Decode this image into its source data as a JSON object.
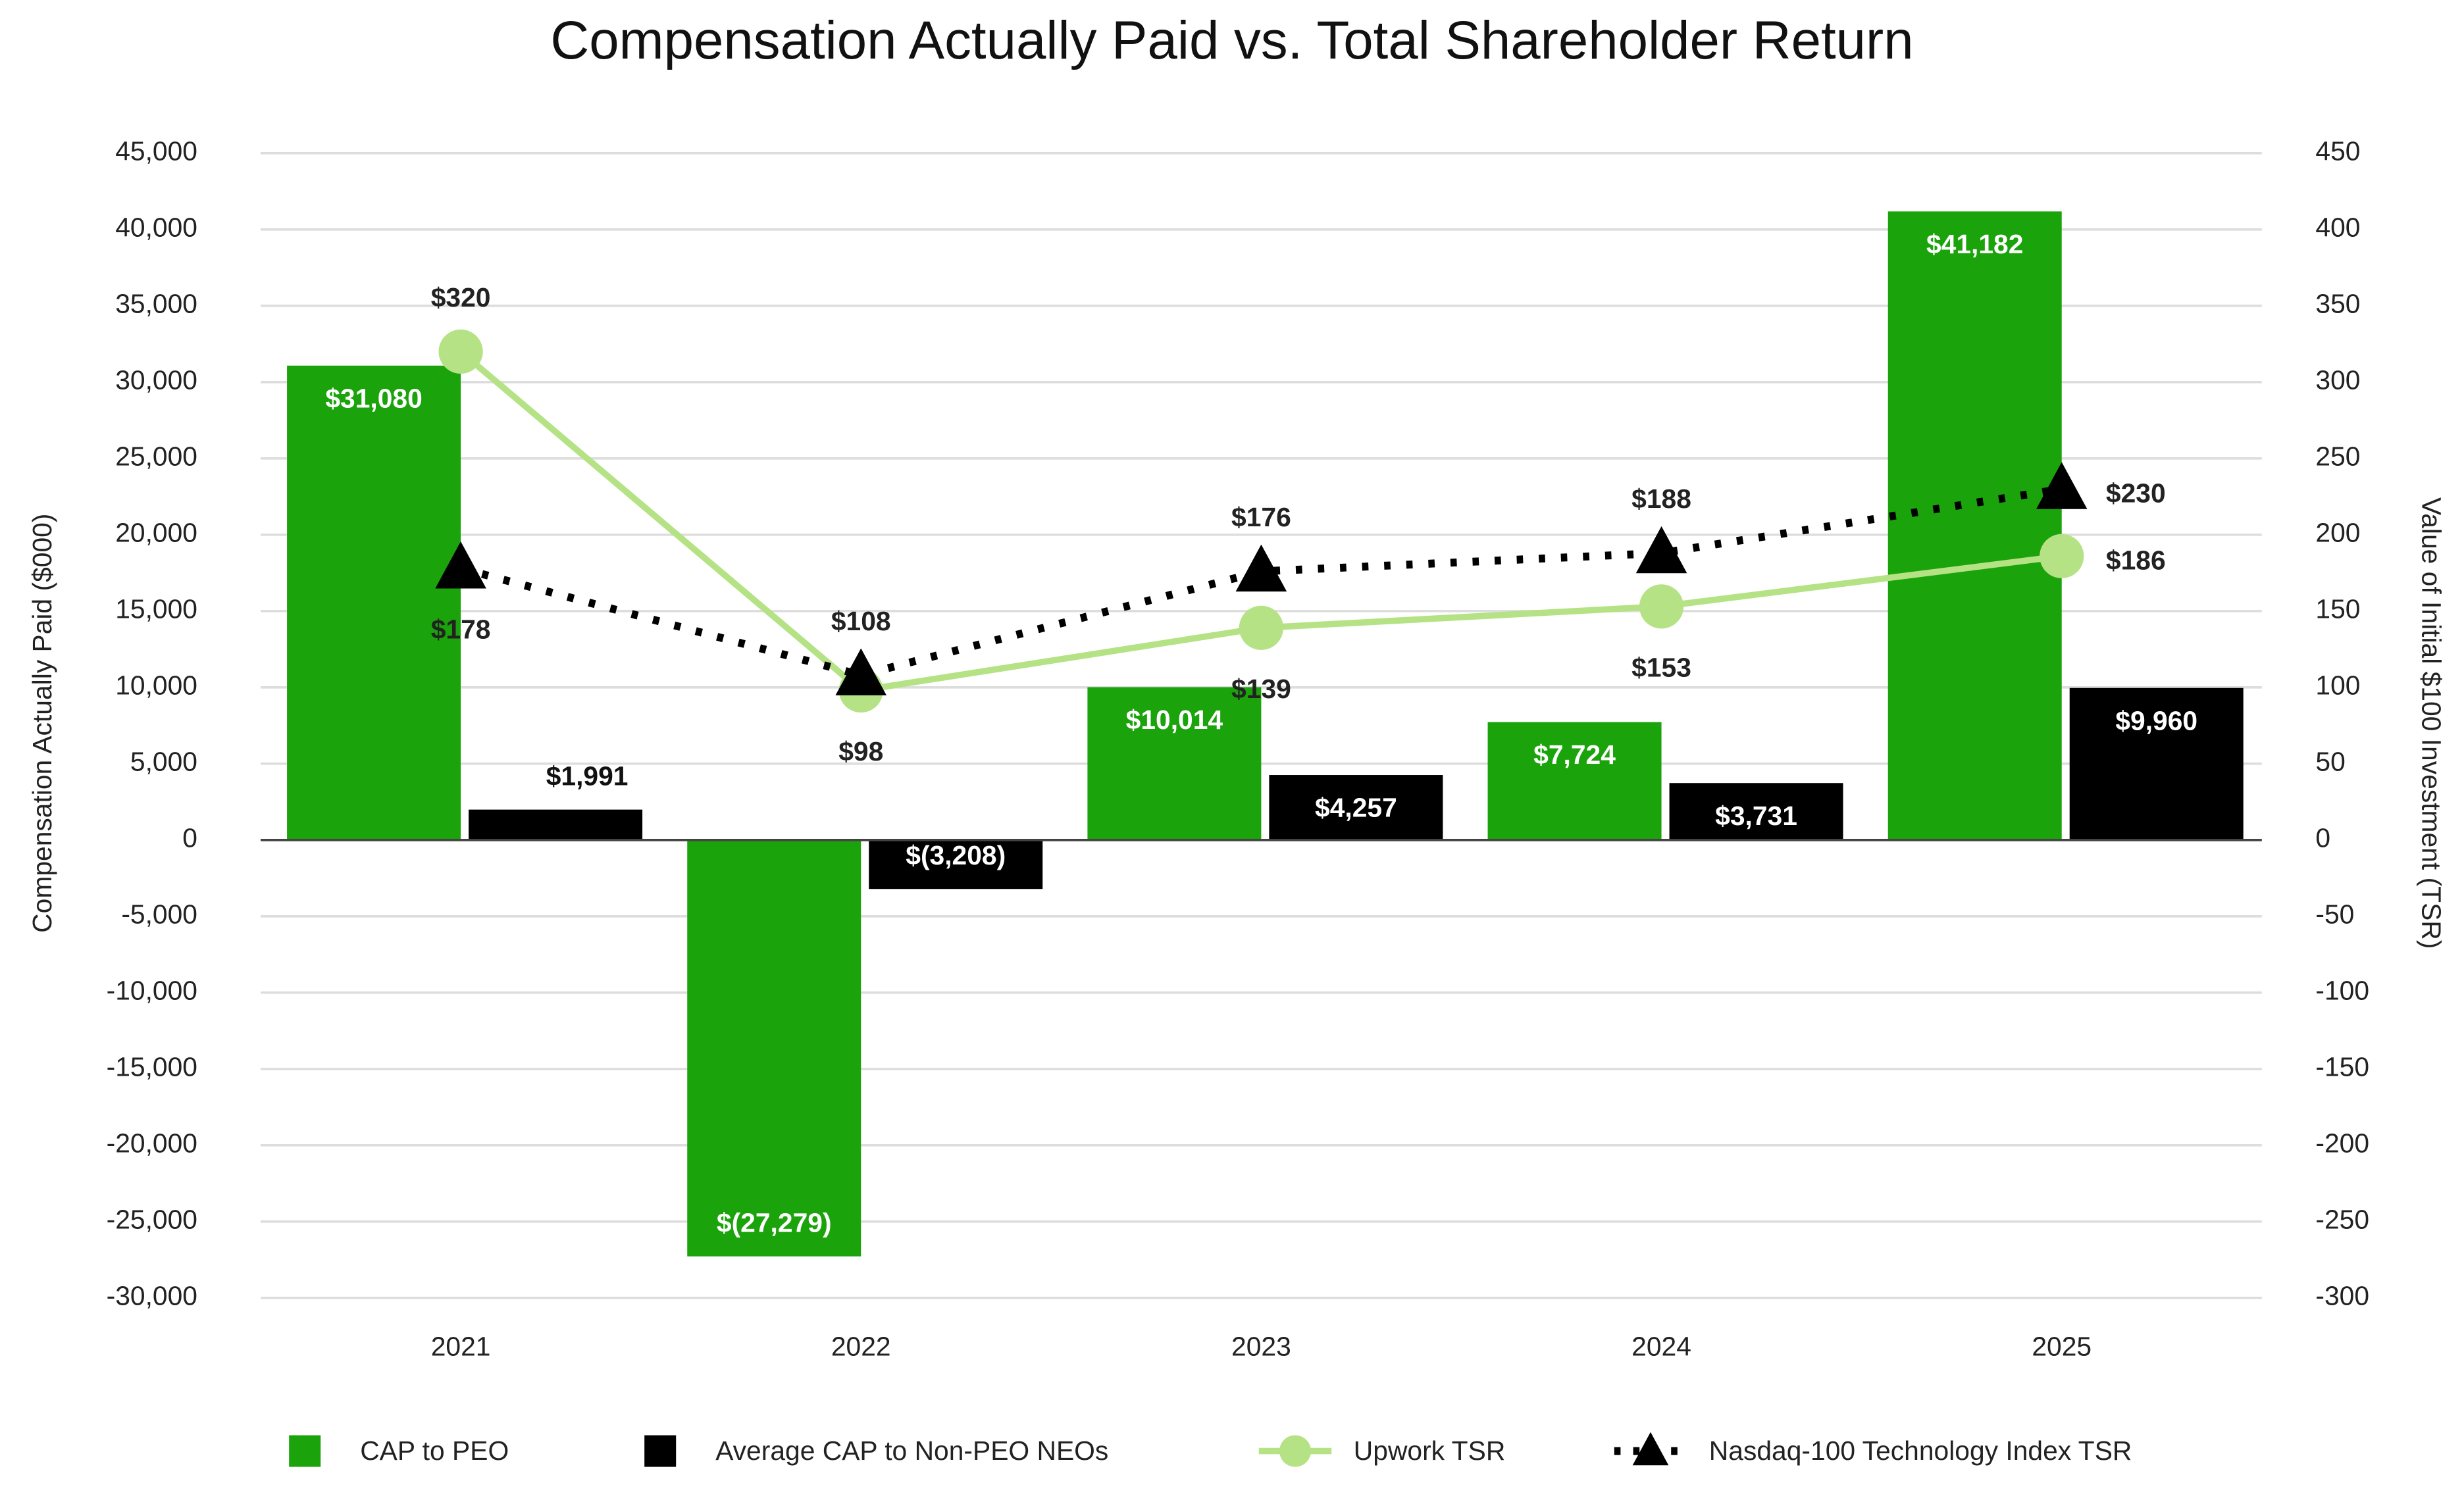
{
  "chart_data": {
    "type": "bar-line",
    "title": "Compensation Actually Paid vs. Total Shareholder Return",
    "y_label": "Compensation Actually Paid ($000)",
    "y2_label": "Value of Initial $100 Investment (TSR)",
    "categories": [
      "2021",
      "2022",
      "2023",
      "2024",
      "2025"
    ],
    "ylim": [
      -30000,
      45000
    ],
    "yticks": [
      {
        "value": -30000,
        "label": "-30,000"
      },
      {
        "value": -25000,
        "label": "-25,000"
      },
      {
        "value": -20000,
        "label": "-20,000"
      },
      {
        "value": -15000,
        "label": "-15,000"
      },
      {
        "value": -10000,
        "label": "-10,000"
      },
      {
        "value": -5000,
        "label": "-5,000"
      },
      0,
      {
        "value": 5000,
        "label": "5,000"
      },
      {
        "value": 10000,
        "label": "10,000"
      },
      {
        "value": 15000,
        "label": "15,000"
      },
      {
        "value": 20000,
        "label": "20,000"
      },
      {
        "value": 25000,
        "label": "25,000"
      },
      {
        "value": 30000,
        "label": "30,000"
      },
      {
        "value": 35000,
        "label": "35,000"
      },
      {
        "value": 40000,
        "label": "40,000"
      },
      {
        "value": 45000,
        "label": "45,000"
      }
    ],
    "y2lim": [
      -300,
      450
    ],
    "y2ticks": [
      -300,
      -250,
      -200,
      -150,
      -100,
      -50,
      0,
      50,
      100,
      150,
      200,
      250,
      300,
      350,
      400,
      450
    ],
    "grid": true,
    "legend": "bottom",
    "series": [
      {
        "name": "CAP to PEO",
        "type": "bar",
        "color": "#1aa30a",
        "values": [
          31080,
          -27279,
          10014,
          7724,
          41182
        ],
        "value_labels": [
          "$31,080",
          "$(27,279)",
          "$10,014",
          "$7,724",
          "$41,182"
        ]
      },
      {
        "name": "Average CAP to Non-PEO NEOs",
        "type": "bar",
        "color": "#000000",
        "values": [
          1991,
          -3208,
          4257,
          3731,
          9960
        ],
        "value_labels": [
          "$1,991",
          "$(3,208)",
          "$4,257",
          "$3,731",
          "$9,960"
        ]
      },
      {
        "name": "Upwork TSR",
        "type": "line",
        "axis": "y2",
        "color": "#b5e284",
        "marker": "circle",
        "values": [
          320,
          98,
          139,
          153,
          186
        ],
        "value_labels": [
          "$320",
          "$98",
          "$139",
          "$153",
          "$186"
        ]
      },
      {
        "name": "Nasdaq-100 Technology Index TSR",
        "type": "line",
        "axis": "y2",
        "color": "#000000",
        "marker": "triangle",
        "dash": "dotted",
        "values": [
          178,
          108,
          176,
          188,
          230
        ],
        "value_labels": [
          "$178",
          "$108",
          "$176",
          "$188",
          "$230"
        ]
      }
    ]
  }
}
